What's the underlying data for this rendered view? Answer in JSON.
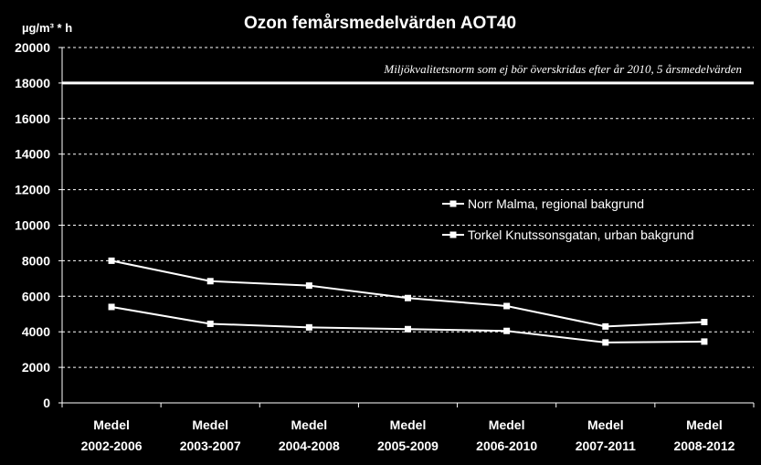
{
  "chart_data": {
    "type": "line",
    "title": "Ozon femårsmedelvärden AOT40",
    "ylabel": "µg/m³ * h",
    "xlabel": "",
    "ylim": [
      0,
      20000
    ],
    "yticks": [
      0,
      2000,
      4000,
      6000,
      8000,
      10000,
      12000,
      14000,
      16000,
      18000,
      20000
    ],
    "categories": [
      [
        "Medel",
        "2002-2006"
      ],
      [
        "Medel",
        "2003-2007"
      ],
      [
        "Medel",
        "2004-2008"
      ],
      [
        "Medel",
        "2005-2009"
      ],
      [
        "Medel",
        "2006-2010"
      ],
      [
        "Medel",
        "2007-2011"
      ],
      [
        "Medel",
        "2008-2012"
      ]
    ],
    "series": [
      {
        "name": "Norr Malma, regional bakgrund",
        "values": [
          8000,
          6850,
          6600,
          5900,
          5450,
          4300,
          4550
        ]
      },
      {
        "name": "Torkel Knutssonsgatan, urban bakgrund",
        "values": [
          5400,
          4450,
          4250,
          4150,
          4050,
          3400,
          3450
        ]
      }
    ],
    "reference_line": {
      "value": 18000,
      "label": "Miljökvalitetsnorm som ej bör överskridas efter år 2010, 5 årsmedelvärden"
    },
    "grid": "horizontal dashed",
    "legend_position": "right",
    "colors": {
      "background": "#000000",
      "foreground": "#ffffff"
    }
  }
}
